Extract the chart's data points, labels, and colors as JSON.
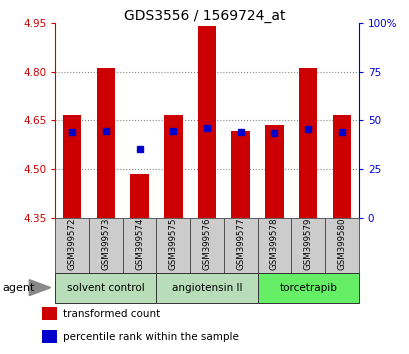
{
  "title": "GDS3556 / 1569724_at",
  "samples": [
    "GSM399572",
    "GSM399573",
    "GSM399574",
    "GSM399575",
    "GSM399576",
    "GSM399577",
    "GSM399578",
    "GSM399579",
    "GSM399580"
  ],
  "bar_tops": [
    4.668,
    4.812,
    4.484,
    4.668,
    4.942,
    4.618,
    4.636,
    4.812,
    4.668
  ],
  "bar_base": 4.35,
  "blue_values_left": [
    4.615,
    4.617,
    4.562,
    4.617,
    4.625,
    4.615,
    4.612,
    4.622,
    4.615
  ],
  "ylim_left": [
    4.35,
    4.95
  ],
  "ylim_right": [
    0,
    100
  ],
  "yticks_left": [
    4.35,
    4.5,
    4.65,
    4.8,
    4.95
  ],
  "yticks_right": [
    0,
    25,
    50,
    75,
    100
  ],
  "ytick_labels_right": [
    "0",
    "25",
    "50",
    "75",
    "100%"
  ],
  "bar_color": "#cc0000",
  "blue_color": "#0000cc",
  "group_labels": [
    "solvent control",
    "angiotensin II",
    "torcetrapib"
  ],
  "group_starts": [
    0,
    3,
    6
  ],
  "group_ends": [
    2,
    5,
    8
  ],
  "group_colors": [
    "#b8ddb8",
    "#b8ddb8",
    "#66ee66"
  ],
  "agent_label": "agent",
  "legend_red": "transformed count",
  "legend_blue": "percentile rank within the sample",
  "grid_color": "#555555",
  "bar_width": 0.55,
  "sample_bg": "#cccccc"
}
